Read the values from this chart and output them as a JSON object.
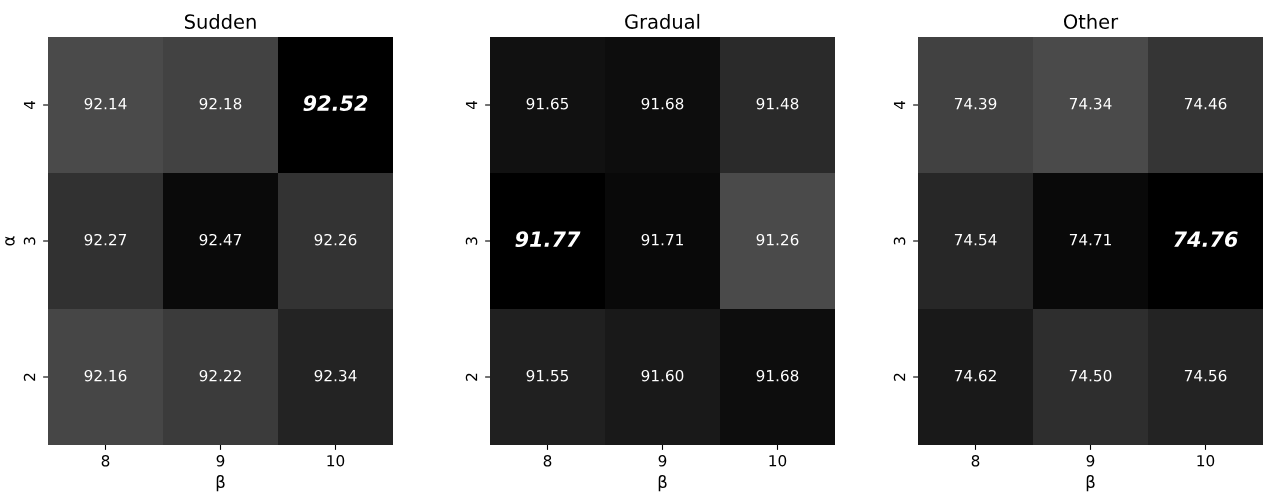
{
  "chart_data": [
    {
      "type": "heatmap",
      "title": "Sudden",
      "xlabel": "β",
      "ylabel": "α",
      "categories": [
        "8",
        "9",
        "10"
      ],
      "y_categories": [
        "4",
        "3",
        "2"
      ],
      "data_labels": true,
      "cells": [
        [
          92.14,
          92.18,
          92.52
        ],
        [
          92.27,
          92.47,
          92.26
        ],
        [
          92.16,
          92.22,
          92.34
        ]
      ]
    },
    {
      "type": "heatmap",
      "title": "Gradual",
      "xlabel": "β",
      "categories": [
        "8",
        "9",
        "10"
      ],
      "y_categories": [
        "4",
        "3",
        "2"
      ],
      "data_labels": true,
      "cells": [
        [
          91.65,
          91.68,
          91.48
        ],
        [
          91.77,
          91.71,
          91.26
        ],
        [
          91.55,
          91.6,
          91.68
        ]
      ],
      "cell_labels": [
        [
          "91.65",
          "91.68",
          "91.48"
        ],
        [
          "91.77",
          "91.71",
          "91.26"
        ],
        [
          "91.55",
          "91.60",
          "91.68"
        ]
      ]
    },
    {
      "type": "heatmap",
      "title": "Other",
      "xlabel": "β",
      "categories": [
        "8",
        "9",
        "10"
      ],
      "y_categories": [
        "4",
        "3",
        "2"
      ],
      "data_labels": true,
      "cells": [
        [
          74.39,
          74.34,
          74.46
        ],
        [
          74.54,
          74.71,
          74.76
        ],
        [
          74.62,
          74.5,
          74.56
        ]
      ],
      "cell_labels": [
        [
          "74.39",
          "74.34",
          "74.46"
        ],
        [
          "74.54",
          "74.71",
          "74.76"
        ],
        [
          "74.62",
          "74.50",
          "74.56"
        ]
      ]
    }
  ]
}
